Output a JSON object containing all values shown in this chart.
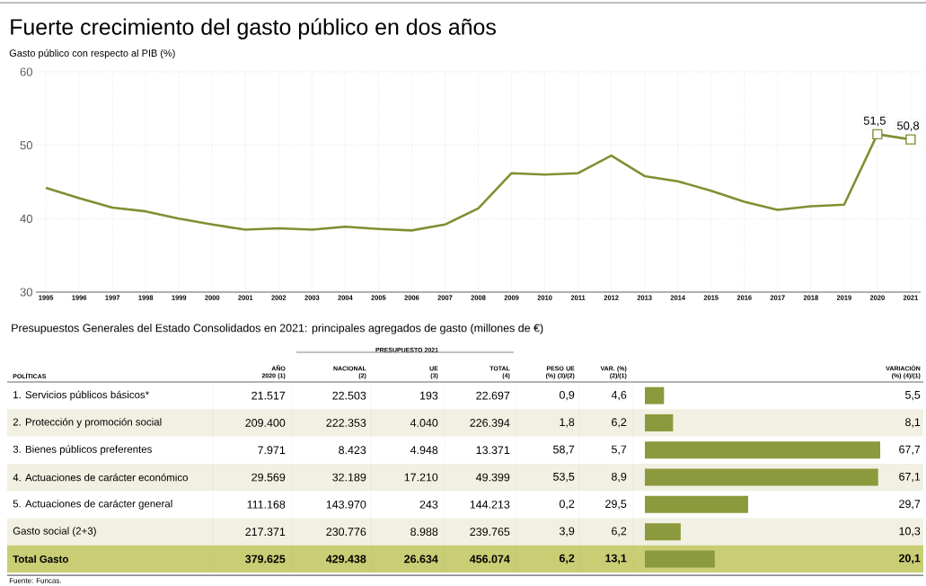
{
  "chart_data": [
    {
      "type": "line",
      "title": "Fuerte crecimiento del gasto público en dos años",
      "subtitle": "Gasto público con respecto al PIB (%)",
      "categories": [
        "1995",
        "1996",
        "1997",
        "1998",
        "1999",
        "2000",
        "2001",
        "2002",
        "2003",
        "2004",
        "2005",
        "2006",
        "2007",
        "2008",
        "2009",
        "2010",
        "2011",
        "2012",
        "2013",
        "2014",
        "2015",
        "2016",
        "2017",
        "2018",
        "2019",
        "2020",
        "2021"
      ],
      "series": [
        {
          "type": "line",
          "color": "#7d9132",
          "values": [
            44.2,
            42.8,
            41.5,
            41.0,
            40.0,
            39.2,
            38.5,
            38.7,
            38.5,
            38.9,
            38.6,
            38.4,
            39.2,
            41.4,
            46.2,
            46.0,
            46.2,
            48.6,
            45.8,
            45.1,
            43.8,
            42.3,
            41.2,
            41.7,
            41.9,
            51.5,
            50.8
          ]
        },
        {
          "type": "scatter",
          "color": "#7d9132",
          "marker": "square",
          "values": [
            null,
            null,
            null,
            null,
            null,
            null,
            null,
            null,
            null,
            null,
            null,
            null,
            null,
            null,
            null,
            null,
            null,
            null,
            null,
            null,
            null,
            null,
            null,
            null,
            null,
            51.5,
            50.8
          ]
        }
      ],
      "ylim": [
        30,
        60
      ],
      "yticks": [
        30,
        40,
        50,
        60
      ],
      "grid": true,
      "annotations": [
        {
          "text": "51,5",
          "x": "2020",
          "y": 51.5
        },
        {
          "text": "50,8",
          "x": "2021",
          "y": 50.8
        }
      ]
    },
    {
      "type": "other",
      "title": "Presupuestos Generales del Estado Consolidados en 2021: principales agregados de gasto (millones de €)",
      "subtitle": "PRESUPUESTO 2021",
      "categories": [
        "POLÍTICAS",
        "AÑO 2020 (1)",
        "NACIONAL (2)",
        "UE (3)",
        "TOTAL (4)",
        "PESO UE (%) (3)/(2)",
        "VAR. (%) (2)/(1)",
        "VARIACIÓN (%) (4)/(1)"
      ],
      "y_categories": [
        "1. Servicios públicos básicos*",
        "2. Protección y promoción social",
        "3. Bienes públicos preferentes",
        "4. Actuaciones de carácter económico",
        "5. Actuaciones de carácter general",
        "Gasto social (2+3)",
        "Total Gasto"
      ],
      "cell_labels": [
        [
          "21.517",
          "22.503",
          "193",
          "22.697",
          "0,9",
          "4,6"
        ],
        [
          "209.400",
          "222.353",
          "4.040",
          "226.394",
          "1,8",
          "6,2"
        ],
        [
          "7.971",
          "8.423",
          "4.948",
          "13.371",
          "58,7",
          "5,7"
        ],
        [
          "29.569",
          "32.189",
          "17.210",
          "49.399",
          "53,5",
          "8,9"
        ],
        [
          "111.168",
          "143.970",
          "243",
          "144.213",
          "0,2",
          "29,5"
        ],
        [
          "217.371",
          "230.776",
          "8.988",
          "239.765",
          "3,9",
          "6,2"
        ],
        [
          "379.625",
          "429.438",
          "26.634",
          "456.074",
          "6,2",
          "13,1"
        ]
      ],
      "annotations": [
        "Fuente: Funcas."
      ]
    },
    {
      "type": "bar",
      "orientation": "horizontal",
      "categories": [
        null,
        null,
        null,
        null,
        null,
        null,
        null
      ],
      "values": [
        5.5,
        8.1,
        67.7,
        67.1,
        29.7,
        10.3,
        20.1
      ],
      "value_labels": [
        "5,5",
        "8,1",
        "67,7",
        "67,1",
        "29,7",
        "10,3",
        "20,1"
      ],
      "color": "#8a9a3c"
    }
  ]
}
